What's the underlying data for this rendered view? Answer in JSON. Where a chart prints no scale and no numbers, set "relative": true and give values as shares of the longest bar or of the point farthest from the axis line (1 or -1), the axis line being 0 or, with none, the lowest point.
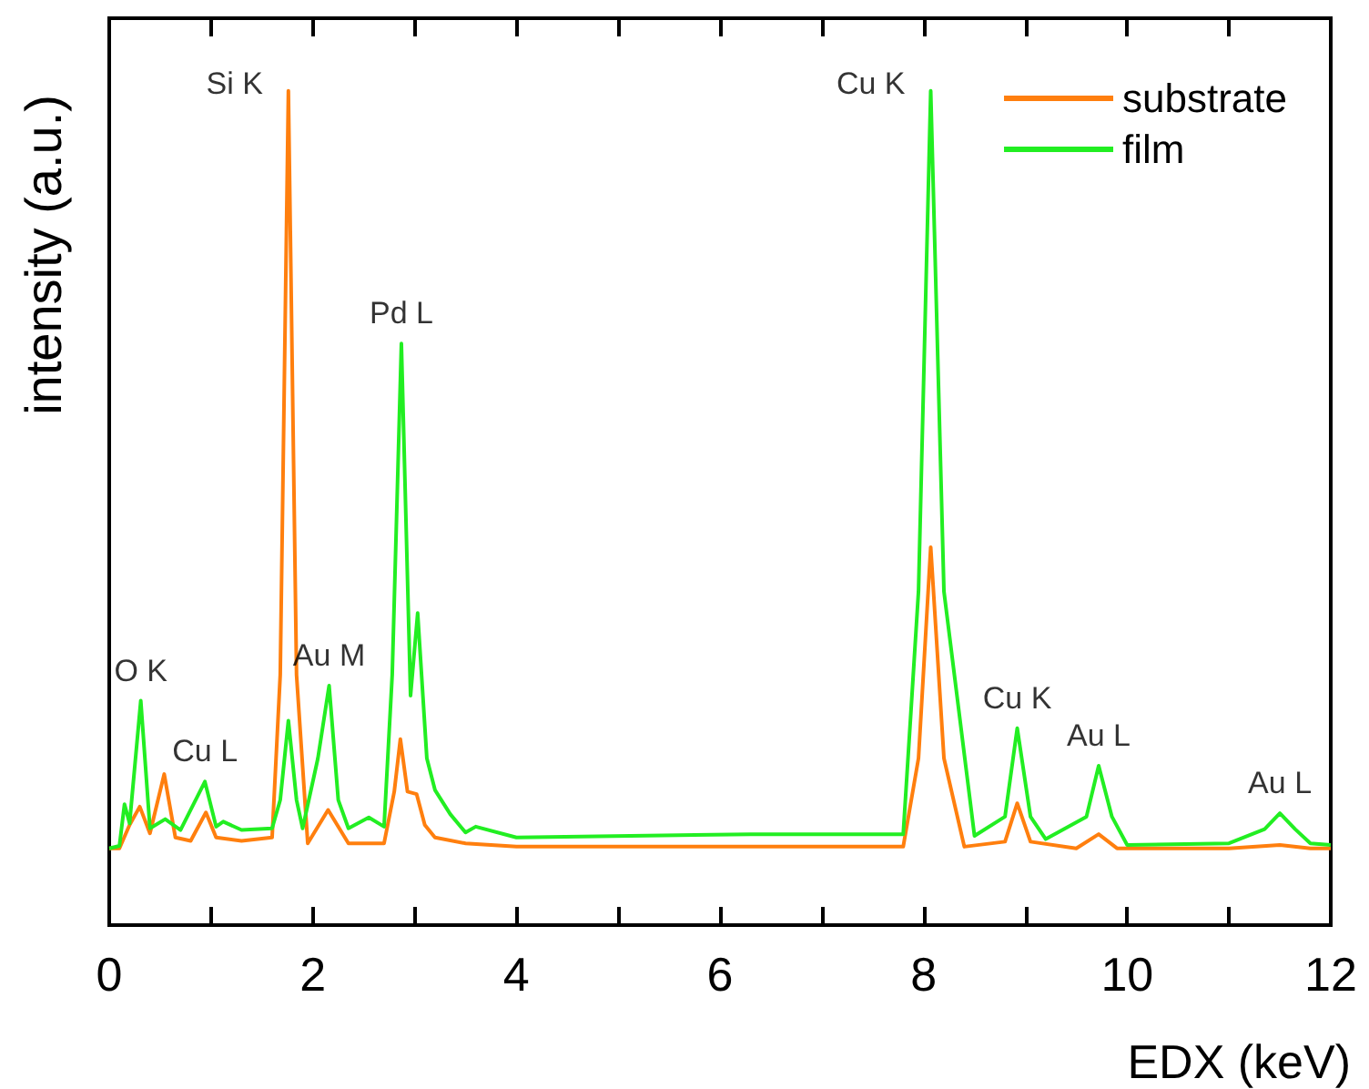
{
  "chart_data": {
    "type": "line",
    "xlabel": "EDX (keV)",
    "ylabel": "intensity (a.u.)",
    "relative": true,
    "xlim": [
      0,
      12
    ],
    "xticks": [
      0,
      {
        "value": 1,
        "label": null
      },
      2,
      {
        "value": 3,
        "label": null
      },
      4,
      {
        "value": 5,
        "label": null
      },
      6,
      {
        "value": 7,
        "label": null
      },
      8,
      {
        "value": 9,
        "label": null
      },
      10,
      {
        "value": 11,
        "label": null
      },
      12
    ],
    "legend": "top right",
    "grid": false,
    "marker": "none",
    "line_style": "solid",
    "annotations": [
      {
        "text": "O K",
        "x": 0.31,
        "y": 0.269
      },
      {
        "text": "Cu L",
        "x": 0.94,
        "y": 0.172
      },
      {
        "text": "Si K",
        "x": 1.76,
        "y": 1.0
      },
      {
        "text": "Au M",
        "x": 2.16,
        "y": 0.287
      },
      {
        "text": "Pd L",
        "x": 2.87,
        "y": 0.697
      },
      {
        "text": "Cu K",
        "x": 8.07,
        "y": 1.0
      },
      {
        "text": "Cu K",
        "x": 8.92,
        "y": 0.236
      },
      {
        "text": "Au L",
        "x": 9.72,
        "y": 0.191
      },
      {
        "text": "Au L",
        "x": 11.5,
        "y": 0.134
      }
    ],
    "series": [
      {
        "name": "substrate",
        "color": "#ff7f0e",
        "x": [
          0,
          0.1,
          0.2,
          0.3,
          0.4,
          0.54,
          0.65,
          0.8,
          0.95,
          1.05,
          1.3,
          1.6,
          1.68,
          1.76,
          1.84,
          1.95,
          2.15,
          2.35,
          2.7,
          2.8,
          2.86,
          2.93,
          3.02,
          3.1,
          3.2,
          3.5,
          4,
          6,
          7.8,
          7.95,
          8.07,
          8.2,
          8.4,
          8.8,
          8.92,
          9.05,
          9.5,
          9.72,
          9.9,
          11,
          11.5,
          11.8,
          12
        ],
        "values": [
          0.092,
          0.092,
          0.12,
          0.142,
          0.11,
          0.181,
          0.105,
          0.101,
          0.135,
          0.105,
          0.101,
          0.105,
          0.3,
          1.0,
          0.3,
          0.098,
          0.138,
          0.098,
          0.098,
          0.16,
          0.223,
          0.16,
          0.157,
          0.12,
          0.105,
          0.098,
          0.094,
          0.094,
          0.094,
          0.2,
          0.453,
          0.2,
          0.094,
          0.1,
          0.146,
          0.1,
          0.092,
          0.109,
          0.092,
          0.092,
          0.096,
          0.092,
          0.092
        ]
      },
      {
        "name": "film",
        "color": "#22ee22",
        "x": [
          0,
          0.1,
          0.15,
          0.2,
          0.31,
          0.4,
          0.55,
          0.7,
          0.94,
          1.05,
          1.12,
          1.3,
          1.6,
          1.68,
          1.76,
          1.84,
          1.9,
          2.05,
          2.16,
          2.25,
          2.35,
          2.55,
          2.7,
          2.78,
          2.87,
          2.96,
          3.03,
          3.12,
          3.2,
          3.35,
          3.5,
          3.6,
          4,
          6.3,
          7.8,
          7.95,
          8.07,
          8.2,
          8.5,
          8.8,
          8.92,
          9.05,
          9.2,
          9.6,
          9.72,
          9.85,
          10,
          11,
          11.35,
          11.5,
          11.65,
          11.8,
          12
        ],
        "values": [
          0.092,
          0.095,
          0.145,
          0.122,
          0.269,
          0.116,
          0.127,
          0.114,
          0.172,
          0.118,
          0.124,
          0.114,
          0.116,
          0.15,
          0.245,
          0.15,
          0.116,
          0.2,
          0.287,
          0.15,
          0.116,
          0.129,
          0.118,
          0.3,
          0.697,
          0.275,
          0.374,
          0.2,
          0.162,
          0.133,
          0.111,
          0.118,
          0.105,
          0.109,
          0.109,
          0.4,
          1.0,
          0.4,
          0.107,
          0.13,
          0.236,
          0.13,
          0.103,
          0.13,
          0.191,
          0.13,
          0.096,
          0.098,
          0.115,
          0.134,
          0.115,
          0.098,
          0.096
        ]
      }
    ]
  }
}
